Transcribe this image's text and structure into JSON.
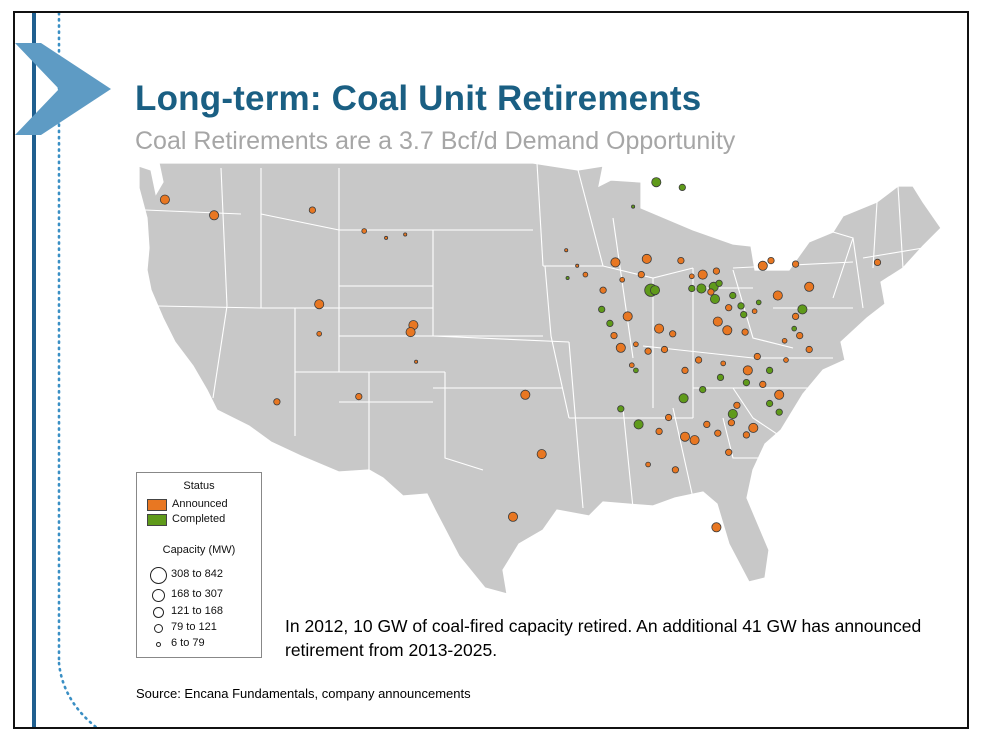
{
  "slide": {
    "title": "Long-term: Coal Unit Retirements",
    "subtitle": "Coal Retirements are a 3.7 Bcf/d Demand Opportunity",
    "note": "In 2012, 10 GW of coal-fired capacity retired. An additional 41 GW has announced retirement from 2013-2025.",
    "source": "Source: Encana Fundamentals, company announcements"
  },
  "legend": {
    "status_title": "Status",
    "status": [
      {
        "label": "Announced",
        "color": "#e87722"
      },
      {
        "label": "Completed",
        "color": "#5f9a1a"
      }
    ],
    "capacity_title": "Capacity (MW)",
    "capacity": [
      "308 to 842",
      "168 to 307",
      "121 to 168",
      "79 to 121",
      "6 to  79"
    ]
  },
  "colors": {
    "title": "#1a5f83",
    "subtitle": "#a6a6a6",
    "land": "#c8c8c8",
    "borders": "#ffffff",
    "announced": "#e87722",
    "completed": "#5f9a1a",
    "accent_bar": "#1f5f8f",
    "chevron": "#5e9bc4"
  },
  "map_data": {
    "type": "point-map",
    "region": "Contiguous United States",
    "point_units": "lon/lat; size class 1-5 per capacity legend",
    "points": [
      {
        "status": "Announced",
        "lon": -122.8,
        "lat": 46.8,
        "size": 4
      },
      {
        "status": "Announced",
        "lon": -119.2,
        "lat": 45.9,
        "size": 4
      },
      {
        "status": "Announced",
        "lon": -112.0,
        "lat": 46.2,
        "size": 3
      },
      {
        "status": "Announced",
        "lon": -108.2,
        "lat": 45.0,
        "size": 2
      },
      {
        "status": "Announced",
        "lon": -106.6,
        "lat": 44.6,
        "size": 1
      },
      {
        "status": "Announced",
        "lon": -105.2,
        "lat": 44.8,
        "size": 1
      },
      {
        "status": "Announced",
        "lon": -111.5,
        "lat": 40.8,
        "size": 4
      },
      {
        "status": "Announced",
        "lon": -111.5,
        "lat": 39.1,
        "size": 2
      },
      {
        "status": "Announced",
        "lon": -104.6,
        "lat": 39.6,
        "size": 4
      },
      {
        "status": "Announced",
        "lon": -104.8,
        "lat": 39.2,
        "size": 4
      },
      {
        "status": "Announced",
        "lon": -104.4,
        "lat": 37.5,
        "size": 1
      },
      {
        "status": "Announced",
        "lon": -114.6,
        "lat": 35.2,
        "size": 3
      },
      {
        "status": "Announced",
        "lon": -108.6,
        "lat": 35.5,
        "size": 3
      },
      {
        "status": "Announced",
        "lon": -96.4,
        "lat": 35.6,
        "size": 4
      },
      {
        "status": "Announced",
        "lon": -95.2,
        "lat": 32.2,
        "size": 4
      },
      {
        "status": "Announced",
        "lon": -97.3,
        "lat": 28.6,
        "size": 4
      },
      {
        "status": "Announced",
        "lon": -93.4,
        "lat": 43.9,
        "size": 1
      },
      {
        "status": "Announced",
        "lon": -92.6,
        "lat": 43.0,
        "size": 1
      },
      {
        "status": "Announced",
        "lon": -92.0,
        "lat": 42.5,
        "size": 2
      },
      {
        "status": "Announced",
        "lon": -89.8,
        "lat": 43.2,
        "size": 4
      },
      {
        "status": "Announced",
        "lon": -89.3,
        "lat": 42.2,
        "size": 2
      },
      {
        "status": "Announced",
        "lon": -90.7,
        "lat": 41.6,
        "size": 3
      },
      {
        "status": "Announced",
        "lon": -87.5,
        "lat": 43.4,
        "size": 4
      },
      {
        "status": "Announced",
        "lon": -87.9,
        "lat": 42.5,
        "size": 3
      },
      {
        "status": "Announced",
        "lon": -88.9,
        "lat": 40.1,
        "size": 4
      },
      {
        "status": "Announced",
        "lon": -89.9,
        "lat": 39.0,
        "size": 3
      },
      {
        "status": "Announced",
        "lon": -89.4,
        "lat": 38.3,
        "size": 4
      },
      {
        "status": "Announced",
        "lon": -88.3,
        "lat": 38.5,
        "size": 2
      },
      {
        "status": "Announced",
        "lon": -86.6,
        "lat": 39.4,
        "size": 4
      },
      {
        "status": "Announced",
        "lon": -85.6,
        "lat": 39.1,
        "size": 3
      },
      {
        "status": "Announced",
        "lon": -86.2,
        "lat": 38.2,
        "size": 3
      },
      {
        "status": "Announced",
        "lon": -87.4,
        "lat": 38.1,
        "size": 3
      },
      {
        "status": "Announced",
        "lon": -85.0,
        "lat": 43.3,
        "size": 3
      },
      {
        "status": "Announced",
        "lon": -84.2,
        "lat": 42.4,
        "size": 2
      },
      {
        "status": "Announced",
        "lon": -83.4,
        "lat": 42.5,
        "size": 4
      },
      {
        "status": "Announced",
        "lon": -82.4,
        "lat": 42.7,
        "size": 3
      },
      {
        "status": "Announced",
        "lon": -82.8,
        "lat": 41.5,
        "size": 3
      },
      {
        "status": "Announced",
        "lon": -81.5,
        "lat": 40.6,
        "size": 3
      },
      {
        "status": "Announced",
        "lon": -82.3,
        "lat": 39.8,
        "size": 4
      },
      {
        "status": "Announced",
        "lon": -81.6,
        "lat": 39.3,
        "size": 4
      },
      {
        "status": "Announced",
        "lon": -80.3,
        "lat": 39.2,
        "size": 3
      },
      {
        "status": "Announced",
        "lon": -79.6,
        "lat": 40.4,
        "size": 2
      },
      {
        "status": "Announced",
        "lon": -77.9,
        "lat": 41.3,
        "size": 4
      },
      {
        "status": "Announced",
        "lon": -76.6,
        "lat": 40.1,
        "size": 3
      },
      {
        "status": "Announced",
        "lon": -75.6,
        "lat": 41.8,
        "size": 4
      },
      {
        "status": "Announced",
        "lon": -79.0,
        "lat": 43.0,
        "size": 4
      },
      {
        "status": "Announced",
        "lon": -78.4,
        "lat": 43.3,
        "size": 3
      },
      {
        "status": "Announced",
        "lon": -76.6,
        "lat": 43.1,
        "size": 3
      },
      {
        "status": "Announced",
        "lon": -70.6,
        "lat": 43.2,
        "size": 3
      },
      {
        "status": "Announced",
        "lon": -76.3,
        "lat": 39.0,
        "size": 3
      },
      {
        "status": "Announced",
        "lon": -75.6,
        "lat": 38.2,
        "size": 3
      },
      {
        "status": "Announced",
        "lon": -77.4,
        "lat": 38.7,
        "size": 2
      },
      {
        "status": "Announced",
        "lon": -79.4,
        "lat": 37.8,
        "size": 3
      },
      {
        "status": "Announced",
        "lon": -80.1,
        "lat": 37.0,
        "size": 4
      },
      {
        "status": "Announced",
        "lon": -77.3,
        "lat": 37.6,
        "size": 2
      },
      {
        "status": "Announced",
        "lon": -81.9,
        "lat": 37.4,
        "size": 2
      },
      {
        "status": "Announced",
        "lon": -83.7,
        "lat": 37.6,
        "size": 3
      },
      {
        "status": "Announced",
        "lon": -84.7,
        "lat": 37.0,
        "size": 3
      },
      {
        "status": "Announced",
        "lon": -79.0,
        "lat": 36.2,
        "size": 3
      },
      {
        "status": "Announced",
        "lon": -77.8,
        "lat": 35.6,
        "size": 4
      },
      {
        "status": "Announced",
        "lon": -80.9,
        "lat": 35.0,
        "size": 3
      },
      {
        "status": "Announced",
        "lon": -81.3,
        "lat": 34.0,
        "size": 3
      },
      {
        "status": "Announced",
        "lon": -79.7,
        "lat": 33.7,
        "size": 4
      },
      {
        "status": "Announced",
        "lon": -80.2,
        "lat": 33.3,
        "size": 3
      },
      {
        "status": "Announced",
        "lon": -82.3,
        "lat": 33.4,
        "size": 3
      },
      {
        "status": "Announced",
        "lon": -81.5,
        "lat": 32.3,
        "size": 3
      },
      {
        "status": "Announced",
        "lon": -83.1,
        "lat": 33.9,
        "size": 3
      },
      {
        "status": "Announced",
        "lon": -84.0,
        "lat": 33.0,
        "size": 4
      },
      {
        "status": "Announced",
        "lon": -84.7,
        "lat": 33.2,
        "size": 4
      },
      {
        "status": "Announced",
        "lon": -86.6,
        "lat": 33.5,
        "size": 3
      },
      {
        "status": "Announced",
        "lon": -85.9,
        "lat": 34.3,
        "size": 3
      },
      {
        "status": "Announced",
        "lon": -85.4,
        "lat": 31.3,
        "size": 3
      },
      {
        "status": "Announced",
        "lon": -87.4,
        "lat": 31.6,
        "size": 2
      },
      {
        "status": "Announced",
        "lon": -82.4,
        "lat": 28.0,
        "size": 4
      },
      {
        "status": "Announced",
        "lon": -88.6,
        "lat": 37.3,
        "size": 2
      },
      {
        "status": "Completed",
        "lon": -86.8,
        "lat": 47.8,
        "size": 4
      },
      {
        "status": "Completed",
        "lon": -84.9,
        "lat": 47.5,
        "size": 3
      },
      {
        "status": "Completed",
        "lon": -88.5,
        "lat": 46.4,
        "size": 1
      },
      {
        "status": "Completed",
        "lon": -93.3,
        "lat": 42.3,
        "size": 1
      },
      {
        "status": "Completed",
        "lon": -87.2,
        "lat": 41.6,
        "size": 5
      },
      {
        "status": "Completed",
        "lon": -86.9,
        "lat": 41.6,
        "size": 4
      },
      {
        "status": "Completed",
        "lon": -90.8,
        "lat": 40.5,
        "size": 3
      },
      {
        "status": "Completed",
        "lon": -90.2,
        "lat": 39.7,
        "size": 3
      },
      {
        "status": "Completed",
        "lon": -88.3,
        "lat": 37.0,
        "size": 2
      },
      {
        "status": "Completed",
        "lon": -84.2,
        "lat": 41.7,
        "size": 3
      },
      {
        "status": "Completed",
        "lon": -83.5,
        "lat": 41.7,
        "size": 4
      },
      {
        "status": "Completed",
        "lon": -82.6,
        "lat": 41.8,
        "size": 4
      },
      {
        "status": "Completed",
        "lon": -82.2,
        "lat": 42.0,
        "size": 3
      },
      {
        "status": "Completed",
        "lon": -82.5,
        "lat": 41.1,
        "size": 4
      },
      {
        "status": "Completed",
        "lon": -81.2,
        "lat": 41.3,
        "size": 3
      },
      {
        "status": "Completed",
        "lon": -80.6,
        "lat": 40.7,
        "size": 3
      },
      {
        "status": "Completed",
        "lon": -80.4,
        "lat": 40.2,
        "size": 3
      },
      {
        "status": "Completed",
        "lon": -79.3,
        "lat": 40.9,
        "size": 2
      },
      {
        "status": "Completed",
        "lon": -76.1,
        "lat": 40.5,
        "size": 4
      },
      {
        "status": "Completed",
        "lon": -76.7,
        "lat": 39.4,
        "size": 2
      },
      {
        "status": "Completed",
        "lon": -78.5,
        "lat": 37.0,
        "size": 3
      },
      {
        "status": "Completed",
        "lon": -80.2,
        "lat": 36.3,
        "size": 3
      },
      {
        "status": "Completed",
        "lon": -82.1,
        "lat": 36.6,
        "size": 3
      },
      {
        "status": "Completed",
        "lon": -83.4,
        "lat": 35.9,
        "size": 3
      },
      {
        "status": "Completed",
        "lon": -84.8,
        "lat": 35.4,
        "size": 4
      },
      {
        "status": "Completed",
        "lon": -88.1,
        "lat": 33.9,
        "size": 4
      },
      {
        "status": "Completed",
        "lon": -89.4,
        "lat": 34.8,
        "size": 3
      },
      {
        "status": "Completed",
        "lon": -81.2,
        "lat": 34.5,
        "size": 4
      },
      {
        "status": "Completed",
        "lon": -77.8,
        "lat": 34.6,
        "size": 3
      },
      {
        "status": "Completed",
        "lon": -78.5,
        "lat": 35.1,
        "size": 3
      }
    ]
  }
}
